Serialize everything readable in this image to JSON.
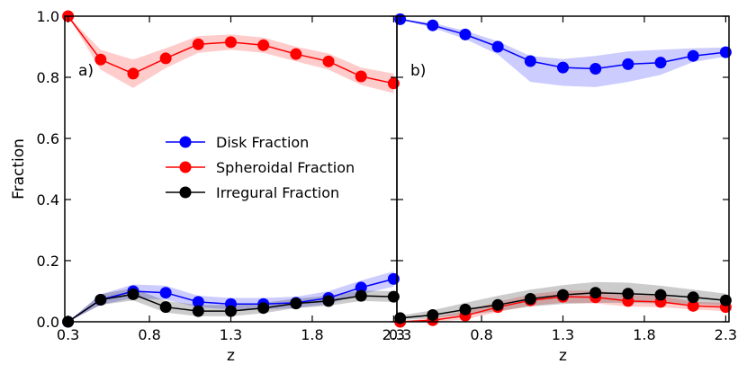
{
  "chart_data": [
    {
      "type": "line",
      "panel_label": "a)",
      "xlabel": "z",
      "ylabel": "Fraction",
      "xlim": [
        0.28,
        2.32
      ],
      "ylim": [
        0.0,
        1.0
      ],
      "xticks": [
        "0.3",
        "0.8",
        "1.3",
        "1.8",
        "2.3"
      ],
      "yticks": [
        "0.0",
        "0.2",
        "0.4",
        "0.6",
        "0.8",
        "1.0"
      ],
      "x": [
        0.3,
        0.5,
        0.7,
        0.9,
        1.1,
        1.3,
        1.5,
        1.7,
        1.9,
        2.1,
        2.3
      ],
      "series": [
        {
          "name": "Disk Fraction",
          "color": "#0000ff",
          "values": [
            0.0,
            0.072,
            0.1,
            0.095,
            0.065,
            0.058,
            0.058,
            0.062,
            0.078,
            0.112,
            0.14
          ],
          "lower": [
            0.0,
            0.055,
            0.078,
            0.072,
            0.048,
            0.04,
            0.04,
            0.045,
            0.058,
            0.09,
            0.115
          ],
          "upper": [
            0.0,
            0.09,
            0.122,
            0.118,
            0.085,
            0.078,
            0.078,
            0.082,
            0.1,
            0.135,
            0.165
          ]
        },
        {
          "name": "Spheroidal Fraction",
          "color": "#ff0000",
          "values": [
            1.0,
            0.858,
            0.812,
            0.862,
            0.908,
            0.915,
            0.905,
            0.876,
            0.852,
            0.803,
            0.78
          ],
          "lower": [
            1.0,
            0.825,
            0.765,
            0.83,
            0.88,
            0.89,
            0.88,
            0.852,
            0.825,
            0.775,
            0.748
          ],
          "upper": [
            1.0,
            0.89,
            0.858,
            0.895,
            0.935,
            0.94,
            0.93,
            0.9,
            0.878,
            0.832,
            0.812
          ]
        },
        {
          "name": "Irregural Fraction",
          "color": "#000000",
          "values": [
            0.0,
            0.072,
            0.09,
            0.048,
            0.035,
            0.035,
            0.045,
            0.06,
            0.068,
            0.085,
            0.082
          ],
          "lower": [
            0.0,
            0.055,
            0.07,
            0.03,
            0.018,
            0.018,
            0.028,
            0.045,
            0.052,
            0.068,
            0.065
          ],
          "upper": [
            0.0,
            0.09,
            0.11,
            0.068,
            0.055,
            0.055,
            0.062,
            0.076,
            0.085,
            0.102,
            0.1
          ]
        }
      ],
      "legend": [
        "Disk Fraction",
        "Spheroidal Fraction",
        "Irregural Fraction"
      ],
      "legend_position": "center"
    },
    {
      "type": "line",
      "panel_label": "b)",
      "xlabel": "z",
      "ylabel": "",
      "xlim": [
        0.28,
        2.32
      ],
      "ylim": [
        0.0,
        1.0
      ],
      "xticks": [
        "0.3",
        "0.8",
        "1.3",
        "1.8",
        "2.3"
      ],
      "x": [
        0.3,
        0.5,
        0.7,
        0.9,
        1.1,
        1.3,
        1.5,
        1.7,
        1.9,
        2.1,
        2.3
      ],
      "series": [
        {
          "name": "Disk Fraction",
          "color": "#0000ff",
          "values": [
            0.99,
            0.97,
            0.94,
            0.9,
            0.853,
            0.832,
            0.828,
            0.843,
            0.848,
            0.87,
            0.882
          ],
          "lower": [
            0.99,
            0.962,
            0.925,
            0.875,
            0.785,
            0.772,
            0.768,
            0.785,
            0.808,
            0.85,
            0.868
          ],
          "upper": [
            0.99,
            0.978,
            0.952,
            0.918,
            0.87,
            0.86,
            0.87,
            0.885,
            0.89,
            0.895,
            0.898
          ]
        },
        {
          "name": "Spheroidal Fraction",
          "color": "#ff0000",
          "values": [
            0.0,
            0.005,
            0.02,
            0.048,
            0.07,
            0.082,
            0.08,
            0.068,
            0.065,
            0.052,
            0.048
          ],
          "lower": [
            0.0,
            0.0,
            0.008,
            0.032,
            0.052,
            0.062,
            0.06,
            0.05,
            0.048,
            0.04,
            0.035
          ],
          "upper": [
            0.0,
            0.015,
            0.035,
            0.065,
            0.09,
            0.102,
            0.102,
            0.088,
            0.085,
            0.066,
            0.062
          ]
        },
        {
          "name": "Irregural Fraction",
          "color": "#000000",
          "values": [
            0.012,
            0.022,
            0.04,
            0.055,
            0.075,
            0.088,
            0.095,
            0.092,
            0.088,
            0.08,
            0.07
          ],
          "lower": [
            0.005,
            0.012,
            0.022,
            0.035,
            0.05,
            0.058,
            0.062,
            0.062,
            0.06,
            0.058,
            0.052
          ],
          "upper": [
            0.02,
            0.038,
            0.062,
            0.085,
            0.105,
            0.12,
            0.13,
            0.128,
            0.118,
            0.105,
            0.092
          ]
        }
      ]
    }
  ]
}
